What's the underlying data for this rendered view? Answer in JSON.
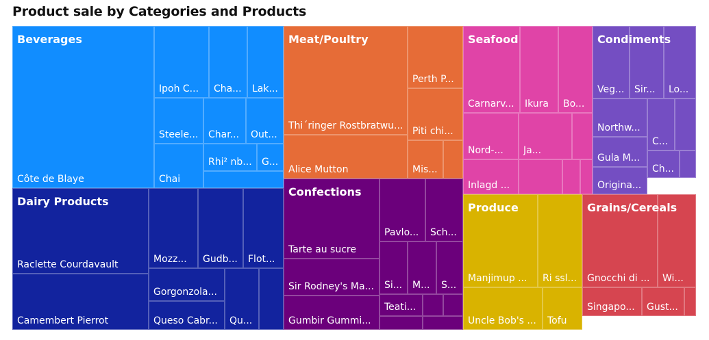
{
  "header": {
    "title": "Product sale by Categories and Products"
  },
  "chart_data": {
    "type": "treemap",
    "title": "Product sale by Categories and Products",
    "categories": [
      {
        "name": "Beverages",
        "color": "#118DFF",
        "value": 267868
      },
      {
        "name": "Dairy Products",
        "color": "#12239E",
        "value": 234507
      },
      {
        "name": "Meat/Poultry",
        "color": "#E66C37",
        "value": 163022
      },
      {
        "name": "Confections",
        "color": "#6B007B",
        "value": 167357
      },
      {
        "name": "Seafood",
        "color": "#E044A7",
        "value": 131261
      },
      {
        "name": "Condiments",
        "color": "#744EC2",
        "value": 106047
      },
      {
        "name": "Produce",
        "color": "#D9B300",
        "value": 99985
      },
      {
        "name": "Grains/Cereals",
        "color": "#D64550",
        "value": 95744
      }
    ],
    "cells": [
      {
        "category": "Beverages",
        "label": "Côte de Blaye"
      },
      {
        "category": "Beverages",
        "label": "Ipoh C..."
      },
      {
        "category": "Beverages",
        "label": "Cha..."
      },
      {
        "category": "Beverages",
        "label": "Lak..."
      },
      {
        "category": "Beverages",
        "label": "Steele..."
      },
      {
        "category": "Beverages",
        "label": "Char..."
      },
      {
        "category": "Beverages",
        "label": "Out..."
      },
      {
        "category": "Beverages",
        "label": "Rhi² nb..."
      },
      {
        "category": "Beverages",
        "label": "G..."
      },
      {
        "category": "Beverages",
        "label": "Chai"
      },
      {
        "category": "Beverages",
        "label": ""
      },
      {
        "category": "Meat/Poultry",
        "label": "Thi´ringer Rostbratwu..."
      },
      {
        "category": "Meat/Poultry",
        "label": "Alice Mutton"
      },
      {
        "category": "Meat/Poultry",
        "label": "Perth P..."
      },
      {
        "category": "Meat/Poultry",
        "label": "Piti chi..."
      },
      {
        "category": "Meat/Poultry",
        "label": "Mis..."
      },
      {
        "category": "Meat/Poultry",
        "label": ""
      },
      {
        "category": "Seafood",
        "label": "Carnarv..."
      },
      {
        "category": "Seafood",
        "label": "Ikura"
      },
      {
        "category": "Seafood",
        "label": "Bo..."
      },
      {
        "category": "Seafood",
        "label": "Nord-..."
      },
      {
        "category": "Seafood",
        "label": "Ja..."
      },
      {
        "category": "Seafood",
        "label": "Inlagd ..."
      },
      {
        "category": "Seafood",
        "label": ""
      },
      {
        "category": "Seafood",
        "label": ""
      },
      {
        "category": "Seafood",
        "label": ""
      },
      {
        "category": "Seafood",
        "label": ""
      },
      {
        "category": "Condiments",
        "label": "Veg..."
      },
      {
        "category": "Condiments",
        "label": "Sir..."
      },
      {
        "category": "Condiments",
        "label": "Lo..."
      },
      {
        "category": "Condiments",
        "label": "Northw..."
      },
      {
        "category": "Condiments",
        "label": "C..."
      },
      {
        "category": "Condiments",
        "label": "Gula M..."
      },
      {
        "category": "Condiments",
        "label": "Ch..."
      },
      {
        "category": "Condiments",
        "label": "Origina..."
      },
      {
        "category": "Condiments",
        "label": ""
      },
      {
        "category": "Condiments",
        "label": ""
      },
      {
        "category": "Dairy Products",
        "label": "Raclette Courdavault"
      },
      {
        "category": "Dairy Products",
        "label": "Camembert Pierrot"
      },
      {
        "category": "Dairy Products",
        "label": "Mozz..."
      },
      {
        "category": "Dairy Products",
        "label": "Gudb..."
      },
      {
        "category": "Dairy Products",
        "label": "Flot..."
      },
      {
        "category": "Dairy Products",
        "label": "Gorgonzola..."
      },
      {
        "category": "Dairy Products",
        "label": "Queso Cabr..."
      },
      {
        "category": "Dairy Products",
        "label": "Qu..."
      },
      {
        "category": "Dairy Products",
        "label": ""
      },
      {
        "category": "Confections",
        "label": "Tarte au sucre"
      },
      {
        "category": "Confections",
        "label": "Sir Rodney's Ma..."
      },
      {
        "category": "Confections",
        "label": "Gumbir Gummi..."
      },
      {
        "category": "Confections",
        "label": "Pavlo..."
      },
      {
        "category": "Confections",
        "label": "Sch..."
      },
      {
        "category": "Confections",
        "label": "Si..."
      },
      {
        "category": "Confections",
        "label": "M..."
      },
      {
        "category": "Confections",
        "label": "S..."
      },
      {
        "category": "Confections",
        "label": "Teati..."
      },
      {
        "category": "Confections",
        "label": ""
      },
      {
        "category": "Confections",
        "label": ""
      },
      {
        "category": "Confections",
        "label": ""
      },
      {
        "category": "Confections",
        "label": ""
      },
      {
        "category": "Produce",
        "label": "Manjimup ..."
      },
      {
        "category": "Produce",
        "label": "Ri ssl..."
      },
      {
        "category": "Produce",
        "label": "Uncle Bob's ..."
      },
      {
        "category": "Produce",
        "label": "Tofu"
      },
      {
        "category": "Grains/Cereals",
        "label": "Gnocchi di ..."
      },
      {
        "category": "Grains/Cereals",
        "label": "Wi..."
      },
      {
        "category": "Grains/Cereals",
        "label": "Singapo..."
      },
      {
        "category": "Grains/Cereals",
        "label": "Gust..."
      },
      {
        "category": "Grains/Cereals",
        "label": ""
      }
    ]
  }
}
